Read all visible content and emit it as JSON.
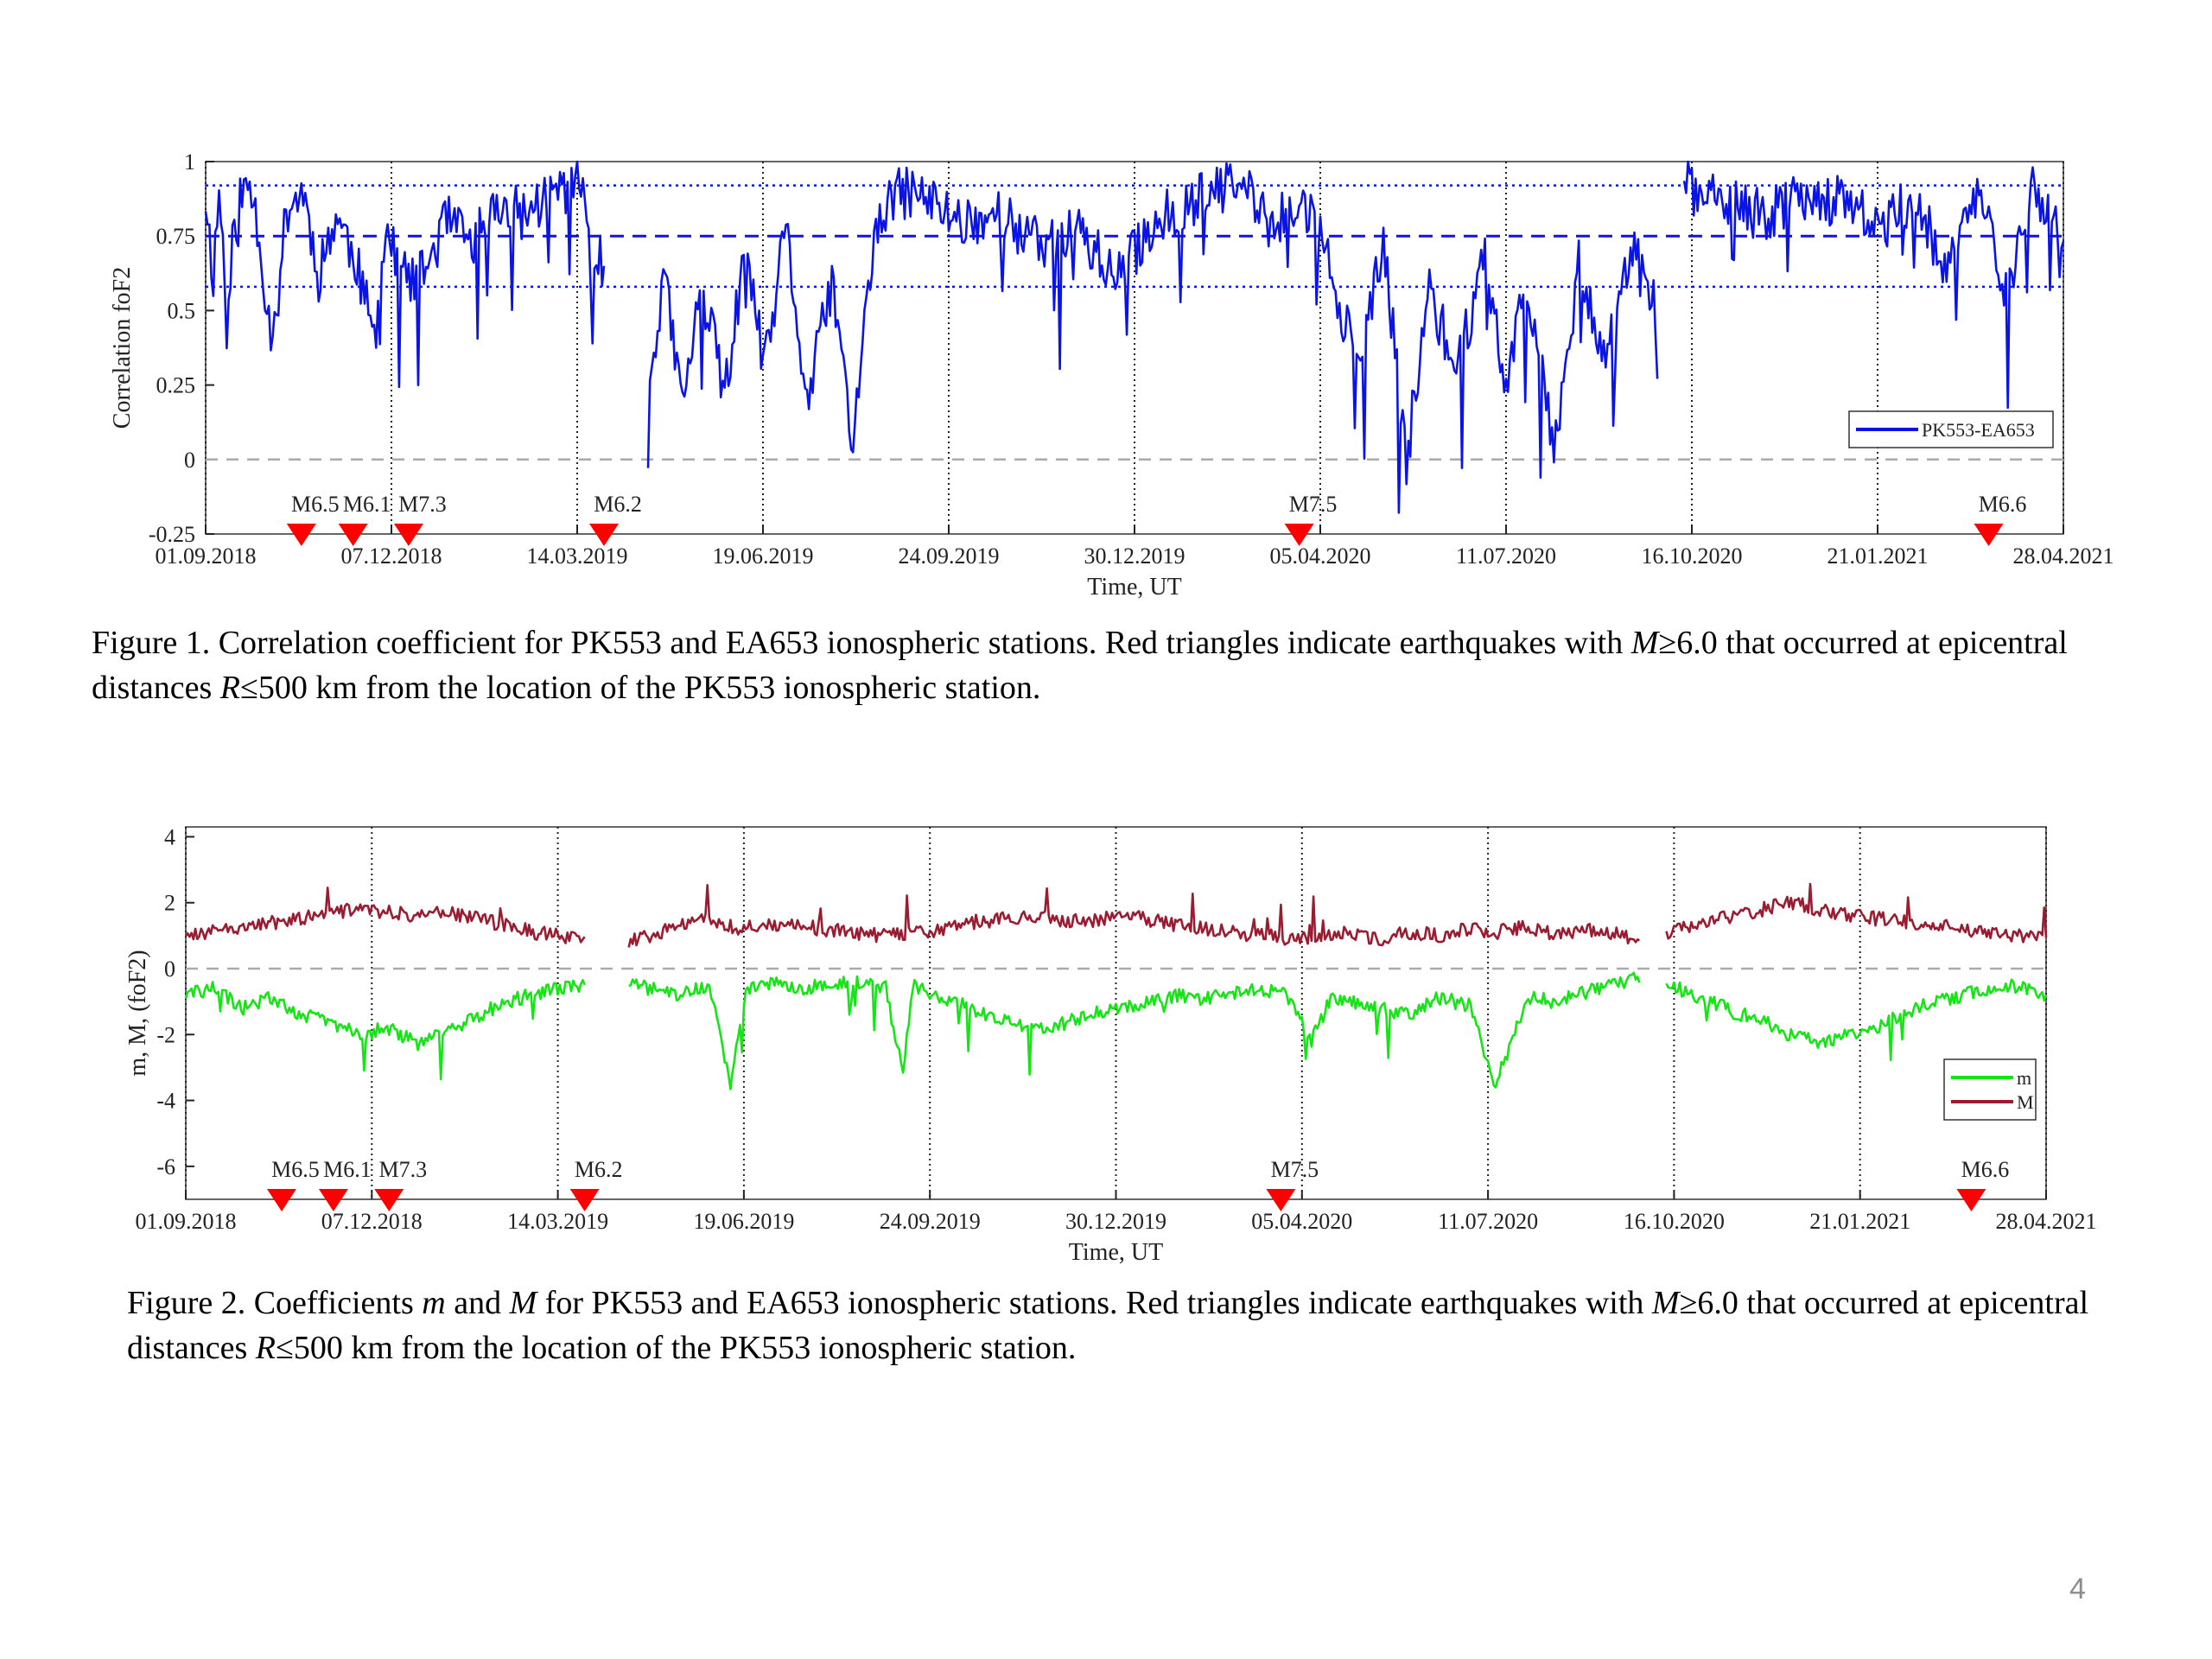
{
  "colors": {
    "series_blue": "#0a14e6",
    "series_green": "#14e614",
    "series_red": "#9b1b30",
    "quake_marker": "#ff0000",
    "grid": "#000000"
  },
  "x_tick_labels": [
    "01.09.2018",
    "07.12.2018",
    "14.03.2019",
    "19.06.2019",
    "24.09.2019",
    "30.12.2019",
    "05.04.2020",
    "11.07.2020",
    "16.10.2020",
    "21.01.2021",
    "28.04.2021"
  ],
  "earthquakes": [
    {
      "label": "M6.5",
      "date": "2018-10-21"
    },
    {
      "label": "M6.1",
      "date": "2018-11-17"
    },
    {
      "label": "M7.3",
      "date": "2018-12-16"
    },
    {
      "label": "M6.2",
      "date": "2019-03-28"
    },
    {
      "label": "M7.5",
      "date": "2020-03-25"
    },
    {
      "label": "M6.6",
      "date": "2021-03-20"
    }
  ],
  "chart_data": [
    {
      "type": "line",
      "caption": "Figure 1. Correlation coefficient for PK553 and EA653 ionospheric stations. Red triangles indicate earthquakes with M≥6.0 that occurred at epicentral distances R≤500 km from the location of the PK553 ionospheric station.",
      "xlabel": "Time, UT",
      "ylabel": "Correlation foF2",
      "xlim": [
        "2018-09-01",
        "2021-04-28"
      ],
      "ylim": [
        -0.25,
        1
      ],
      "y_ticks": [
        "1",
        "0.75",
        "0.5",
        "0.25",
        "0",
        "-0.25"
      ],
      "legend": {
        "position": "lower-right",
        "entries": [
          "PK553-EA653"
        ]
      },
      "reference_lines": [
        {
          "y": 0.92,
          "style": "dotted"
        },
        {
          "y": 0.75,
          "style": "dashed"
        },
        {
          "y": 0.58,
          "style": "dotted"
        },
        {
          "y": 0,
          "style": "dashed-gray"
        }
      ],
      "gaps": [
        [
          "2019-03-28",
          "2019-04-20"
        ],
        [
          "2020-09-28",
          "2020-10-12"
        ]
      ],
      "series": [
        {
          "name": "PK553-EA653",
          "x": [
            "2018-09-01",
            "2018-09-05",
            "2018-09-08",
            "2018-09-12",
            "2018-09-18",
            "2018-09-24",
            "2018-09-28",
            "2018-10-05",
            "2018-10-14",
            "2018-10-22",
            "2018-10-30",
            "2018-11-08",
            "2018-11-18",
            "2018-11-28",
            "2018-12-04",
            "2018-12-10",
            "2018-12-20",
            "2019-01-05",
            "2019-01-18",
            "2019-02-01",
            "2019-02-15",
            "2019-03-01",
            "2019-03-15",
            "2019-03-25",
            "2019-04-20",
            "2019-04-28",
            "2019-05-08",
            "2019-05-18",
            "2019-05-30",
            "2019-06-10",
            "2019-06-20",
            "2019-07-01",
            "2019-07-12",
            "2019-07-25",
            "2019-08-05",
            "2019-08-15",
            "2019-08-25",
            "2019-09-05",
            "2019-09-18",
            "2019-10-01",
            "2019-10-20",
            "2019-11-10",
            "2019-12-01",
            "2019-12-20",
            "2020-01-10",
            "2020-01-25",
            "2020-02-10",
            "2020-02-25",
            "2020-03-10",
            "2020-03-28",
            "2020-04-10",
            "2020-04-25",
            "2020-05-08",
            "2020-05-20",
            "2020-06-01",
            "2020-06-15",
            "2020-06-30",
            "2020-07-10",
            "2020-07-22",
            "2020-08-05",
            "2020-08-18",
            "2020-09-01",
            "2020-09-15",
            "2020-09-27",
            "2020-10-12",
            "2020-10-20",
            "2020-11-05",
            "2020-11-25",
            "2020-12-15",
            "2021-01-05",
            "2021-01-25",
            "2021-02-10",
            "2021-02-25",
            "2021-03-15",
            "2021-03-30",
            "2021-04-12",
            "2021-04-28"
          ],
          "values": [
            0.88,
            0.62,
            0.9,
            0.55,
            0.87,
            0.92,
            0.8,
            0.42,
            0.85,
            0.9,
            0.62,
            0.82,
            0.68,
            0.4,
            0.78,
            0.65,
            0.58,
            0.8,
            0.72,
            0.85,
            0.82,
            0.9,
            0.93,
            0.68,
            0.2,
            0.62,
            0.18,
            0.58,
            0.22,
            0.7,
            0.3,
            0.78,
            0.18,
            0.6,
            0.05,
            0.7,
            0.88,
            0.9,
            0.85,
            0.8,
            0.82,
            0.72,
            0.78,
            0.6,
            0.8,
            0.85,
            0.9,
            0.92,
            0.78,
            0.86,
            0.65,
            0.3,
            0.72,
            0.0,
            0.58,
            0.28,
            0.7,
            0.25,
            0.6,
            0.05,
            0.65,
            0.35,
            0.7,
            0.5,
            0.95,
            0.88,
            0.85,
            0.82,
            0.9,
            0.85,
            0.78,
            0.9,
            0.62,
            0.92,
            0.55,
            0.9,
            0.72
          ]
        }
      ]
    },
    {
      "type": "line",
      "caption": "Figure 2. Coefficients m and M for PK553 and EA653 ionospheric stations. Red triangles indicate earthquakes with M≥6.0 that occurred at epicentral distances R≤500 km from the location of the PK553 ionospheric station.",
      "xlabel": "Time, UT",
      "ylabel": "m, M, (foF2)",
      "xlim": [
        "2018-09-01",
        "2021-04-28"
      ],
      "ylim": [
        -7,
        4.3
      ],
      "y_ticks": [
        "4",
        "2",
        "0",
        "-2",
        "-4",
        "-6"
      ],
      "legend": {
        "position": "lower-right",
        "entries": [
          "m",
          "M"
        ]
      },
      "reference_lines": [
        {
          "y": 0,
          "style": "dashed-gray"
        }
      ],
      "gaps": [
        [
          "2019-03-28",
          "2019-04-20"
        ],
        [
          "2020-09-28",
          "2020-10-12"
        ]
      ],
      "series": [
        {
          "name": "m",
          "x": [
            "2018-09-01",
            "2018-09-15",
            "2018-10-01",
            "2018-10-15",
            "2018-11-01",
            "2018-11-15",
            "2018-12-01",
            "2018-12-15",
            "2019-01-01",
            "2019-01-15",
            "2019-02-01",
            "2019-02-15",
            "2019-03-01",
            "2019-03-15",
            "2019-03-28",
            "2019-04-20",
            "2019-05-01",
            "2019-05-15",
            "2019-06-01",
            "2019-06-12",
            "2019-06-20",
            "2019-07-01",
            "2019-07-15",
            "2019-08-01",
            "2019-08-15",
            "2019-09-01",
            "2019-09-10",
            "2019-09-15",
            "2019-10-01",
            "2019-10-15",
            "2019-11-01",
            "2019-11-15",
            "2019-12-01",
            "2019-12-15",
            "2020-01-01",
            "2020-01-15",
            "2020-02-01",
            "2020-02-15",
            "2020-03-01",
            "2020-03-15",
            "2020-03-28",
            "2020-04-10",
            "2020-04-20",
            "2020-05-01",
            "2020-05-15",
            "2020-06-01",
            "2020-06-15",
            "2020-07-01",
            "2020-07-15",
            "2020-08-01",
            "2020-08-15",
            "2020-09-01",
            "2020-09-15",
            "2020-09-27",
            "2020-10-12",
            "2020-11-01",
            "2020-11-15",
            "2020-12-01",
            "2020-12-15",
            "2021-01-01",
            "2021-01-15",
            "2021-02-01",
            "2021-02-15",
            "2021-03-01",
            "2021-03-15",
            "2021-04-01",
            "2021-04-15",
            "2021-04-28"
          ],
          "values": [
            -0.8,
            -0.6,
            -1.2,
            -0.9,
            -1.4,
            -1.6,
            -2.0,
            -1.8,
            -2.3,
            -1.9,
            -1.4,
            -1.0,
            -0.8,
            -0.6,
            -0.5,
            -0.4,
            -0.6,
            -0.8,
            -0.5,
            -3.6,
            -0.6,
            -0.4,
            -0.6,
            -0.5,
            -0.4,
            -0.6,
            -3.2,
            -0.5,
            -0.9,
            -1.2,
            -1.6,
            -1.8,
            -1.7,
            -1.4,
            -1.2,
            -1.0,
            -0.8,
            -0.9,
            -0.7,
            -0.6,
            -0.8,
            -2.2,
            -0.9,
            -1.0,
            -1.2,
            -1.4,
            -0.9,
            -1.1,
            -3.5,
            -0.9,
            -1.0,
            -0.7,
            -0.5,
            -0.3,
            -0.5,
            -0.9,
            -1.3,
            -1.6,
            -2.0,
            -2.3,
            -2.0,
            -1.7,
            -1.3,
            -1.0,
            -0.8,
            -0.6,
            -0.5,
            -0.8
          ]
        },
        {
          "name": "M",
          "x": [
            "2018-09-01",
            "2018-09-15",
            "2018-10-01",
            "2018-10-15",
            "2018-11-01",
            "2018-11-15",
            "2018-12-01",
            "2018-12-15",
            "2019-01-01",
            "2019-01-15",
            "2019-02-01",
            "2019-02-15",
            "2019-03-01",
            "2019-03-15",
            "2019-03-28",
            "2019-04-20",
            "2019-05-01",
            "2019-05-15",
            "2019-06-01",
            "2019-06-15",
            "2019-07-01",
            "2019-07-15",
            "2019-08-01",
            "2019-08-15",
            "2019-09-01",
            "2019-09-15",
            "2019-10-01",
            "2019-10-15",
            "2019-11-01",
            "2019-11-15",
            "2019-12-01",
            "2019-12-15",
            "2020-01-01",
            "2020-01-15",
            "2020-02-01",
            "2020-02-15",
            "2020-03-01",
            "2020-03-15",
            "2020-04-01",
            "2020-04-15",
            "2020-05-01",
            "2020-05-15",
            "2020-06-01",
            "2020-06-15",
            "2020-07-01",
            "2020-07-15",
            "2020-08-01",
            "2020-08-15",
            "2020-09-01",
            "2020-09-15",
            "2020-09-27",
            "2020-10-12",
            "2020-11-01",
            "2020-11-15",
            "2020-12-01",
            "2020-12-15",
            "2021-01-01",
            "2021-01-15",
            "2021-02-01",
            "2021-02-15",
            "2021-03-01",
            "2021-03-15",
            "2021-04-01",
            "2021-04-15",
            "2021-04-28"
          ],
          "values": [
            1.0,
            1.1,
            1.2,
            1.4,
            1.5,
            1.7,
            1.8,
            1.7,
            1.6,
            1.7,
            1.5,
            1.3,
            1.1,
            1.0,
            0.8,
            0.8,
            1.0,
            1.3,
            1.5,
            1.2,
            1.4,
            1.3,
            1.2,
            1.1,
            1.0,
            1.1,
            1.2,
            1.4,
            1.5,
            1.6,
            1.5,
            1.4,
            1.6,
            1.5,
            1.3,
            1.2,
            1.1,
            1.0,
            0.9,
            1.0,
            1.1,
            0.9,
            1.1,
            1.0,
            1.2,
            1.1,
            1.3,
            1.0,
            1.2,
            1.1,
            0.9,
            1.1,
            1.4,
            1.6,
            1.8,
            2.0,
            1.8,
            1.6,
            1.5,
            1.4,
            1.3,
            1.2,
            1.1,
            1.0,
            0.9
          ]
        }
      ]
    }
  ],
  "captions": {
    "fig1": {
      "a": "Figure 1. Correlation coefficient for PK553 and EA653 ionospheric stations. Red triangles indicate earthquakes with ",
      "b": "M",
      "c": "≥6.0 that occurred at epicentral distances ",
      "d": "R",
      "e": "≤500 km from the location of the PK553 ionospheric station."
    },
    "fig2": {
      "a": "Figure 2. Coefficients ",
      "b": "m",
      "c": " and ",
      "d": "M",
      "e": " for PK553 and EA653 ionospheric stations. Red triangles indicate earthquakes with ",
      "f": "M",
      "g": "≥6.0 that occurred at epicentral distances ",
      "h": "R",
      "i": "≤500 km from the location of the PK553 ionospheric station."
    }
  },
  "page_number": "4"
}
